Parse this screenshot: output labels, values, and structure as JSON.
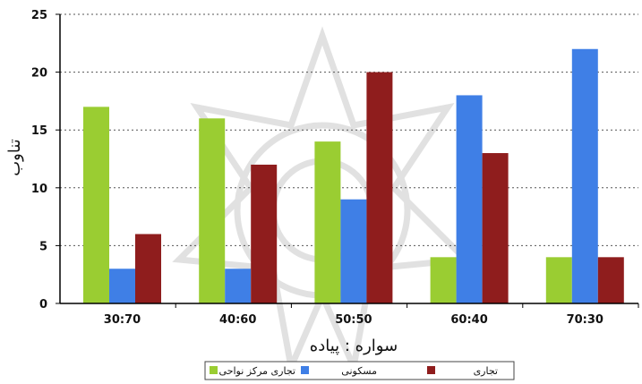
{
  "chart_data": {
    "type": "bar",
    "categories": [
      "30:70",
      "40:60",
      "50:50",
      "60:40",
      "70:30"
    ],
    "series": [
      {
        "name": "تجاری مرکز نواحی",
        "values": [
          17,
          16,
          14,
          4,
          4
        ],
        "color": "#9acd32"
      },
      {
        "name": "مسکونی",
        "values": [
          3,
          3,
          9,
          18,
          22
        ],
        "color": "#3f7fe6"
      },
      {
        "name": "تجاری",
        "values": [
          6,
          12,
          20,
          13,
          4
        ],
        "color": "#8f1d1d"
      }
    ],
    "title": "",
    "xlabel": "سواره : پیاده",
    "ylabel": "تناوب",
    "ylim": [
      0,
      25
    ],
    "yticks": [
      0,
      5,
      10,
      15,
      20,
      25
    ],
    "grid": true,
    "legend_position": "bottom"
  }
}
